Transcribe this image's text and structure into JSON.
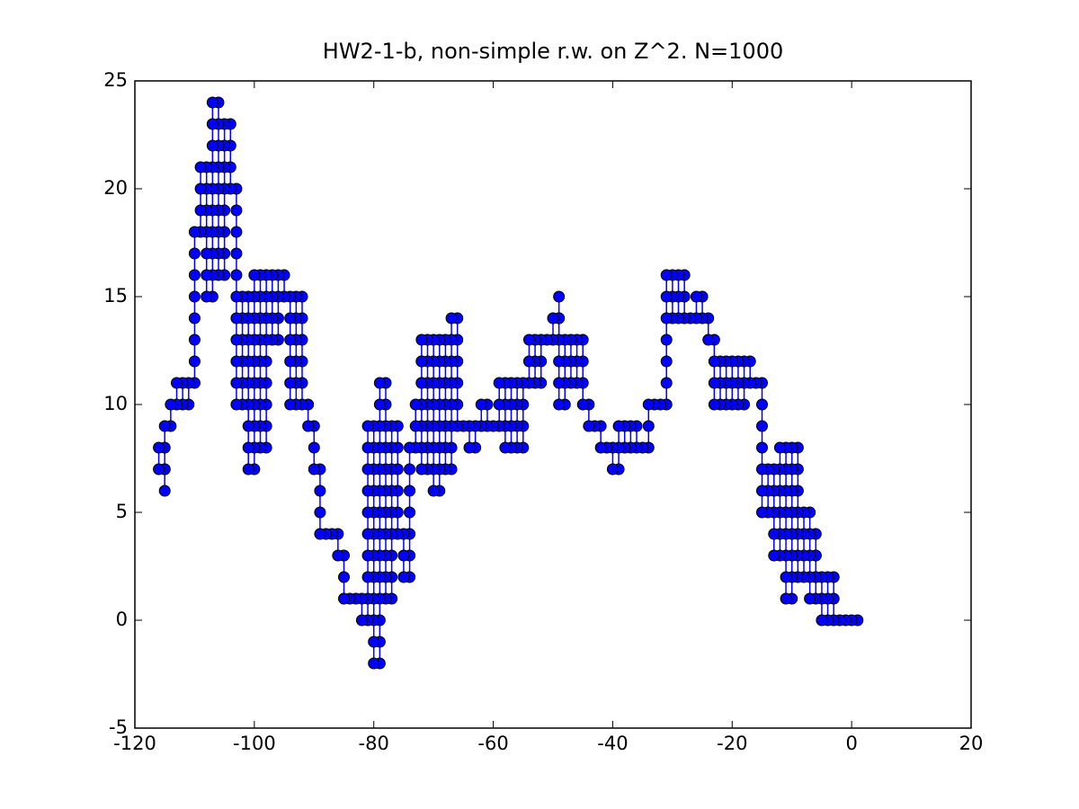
{
  "chart_data": {
    "type": "line",
    "title": "HW2-1-b, non-simple r.w. on Z^2. N=1000",
    "xlim": [
      -120,
      20
    ],
    "xticks": [
      -120,
      -100,
      -80,
      -60,
      -40,
      -20,
      0,
      20
    ],
    "ylim": [
      -5,
      25
    ],
    "yticks": [
      -5,
      0,
      5,
      10,
      15,
      20,
      25
    ],
    "marker_edge_color": "#000000",
    "x": [
      1,
      0,
      -1,
      -2,
      -3,
      -3,
      -3,
      -4,
      -4,
      -4,
      -5,
      -5,
      -5,
      -6,
      -6,
      -6,
      -6,
      -6,
      -6,
      -7,
      -7,
      -7,
      -7,
      -7,
      -8,
      -8,
      -8,
      -8,
      -9,
      -9,
      -9,
      -9,
      -9,
      -9,
      -9,
      -10,
      -10,
      -10,
      -10,
      -10,
      -10,
      -10,
      -10,
      -11,
      -11,
      -11,
      -11,
      -11,
      -11,
      -11,
      -11,
      -12,
      -12,
      -12,
      -12,
      -12,
      -12,
      -13,
      -13,
      -13,
      -13,
      -13,
      -14,
      -14,
      -14,
      -15,
      -15,
      -15,
      -15,
      -15,
      -15,
      -15,
      -16,
      -17,
      -17,
      -18,
      -18,
      -18,
      -19,
      -19,
      -19,
      -20,
      -20,
      -20,
      -21,
      -21,
      -21,
      -22,
      -22,
      -22,
      -23,
      -23,
      -23,
      -23,
      -24,
      -24,
      -25,
      -25,
      -26,
      -26,
      -27,
      -28,
      -28,
      -28,
      -29,
      -29,
      -29,
      -30,
      -30,
      -30,
      -31,
      -31,
      -31,
      -31,
      -31,
      -31,
      -31,
      -32,
      -33,
      -34,
      -34,
      -34,
      -35,
      -36,
      -36,
      -37,
      -37,
      -38,
      -38,
      -39,
      -39,
      -39,
      -40,
      -40,
      -41,
      -42,
      -42,
      -43,
      -44,
      -44,
      -45,
      -45,
      -45,
      -45,
      -46,
      -46,
      -46,
      -47,
      -47,
      -47,
      -48,
      -48,
      -48,
      -48,
      -49,
      -49,
      -49,
      -49,
      -49,
      -49,
      -49,
      -50,
      -50,
      -51,
      -52,
      -52,
      -52,
      -53,
      -53,
      -53,
      -54,
      -54,
      -54,
      -55,
      -55,
      -55,
      -55,
      -56,
      -56,
      -56,
      -56,
      -57,
      -57,
      -57,
      -57,
      -58,
      -58,
      -58,
      -58,
      -59,
      -59,
      -59,
      -60,
      -61,
      -61,
      -62,
      -62,
      -63,
      -63,
      -64,
      -64,
      -65,
      -66,
      -66,
      -66,
      -66,
      -66,
      -66,
      -67,
      -67,
      -67,
      -67,
      -67,
      -67,
      -67,
      -67,
      -68,
      -68,
      -68,
      -68,
      -68,
      -68,
      -68,
      -69,
      -69,
      -69,
      -69,
      -69,
      -69,
      -69,
      -69,
      -70,
      -70,
      -70,
      -70,
      -70,
      -70,
      -70,
      -70,
      -71,
      -71,
      -71,
      -71,
      -71,
      -71,
      -71,
      -72,
      -72,
      -72,
      -72,
      -72,
      -72,
      -72,
      -72,
      -72,
      -72,
      -73,
      -73,
      -73,
      -74,
      -74,
      -74,
      -74,
      -74,
      -74,
      -74,
      -75,
      -75,
      -75,
      -76,
      -76,
      -76,
      -76,
      -76,
      -76,
      -77,
      -77,
      -77,
      -77,
      -77,
      -77,
      -77,
      -77,
      -77,
      -78,
      -78,
      -78,
      -78,
      -78,
      -78,
      -78,
      -78,
      -78,
      -78,
      -78,
      -79,
      -79,
      -79,
      -79,
      -79,
      -79,
      -79,
      -79,
      -79,
      -79,
      -79,
      -79,
      -79,
      -79,
      -80,
      -80,
      -80,
      -80,
      -80,
      -80,
      -80,
      -80,
      -80,
      -80,
      -80,
      -80,
      -81,
      -81,
      -81,
      -81,
      -81,
      -81,
      -81,
      -81,
      -81,
      -81,
      -82,
      -82,
      -83,
      -84,
      -85,
      -85,
      -85,
      -86,
      -86,
      -87,
      -88,
      -89,
      -89,
      -89,
      -89,
      -90,
      -90,
      -90,
      -91,
      -91,
      -92,
      -92,
      -92,
      -92,
      -92,
      -92,
      -93,
      -93,
      -93,
      -93,
      -93,
      -93,
      -94,
      -94,
      -94,
      -94,
      -94,
      -94,
      -95,
      -95,
      -96,
      -96,
      -96,
      -96,
      -97,
      -97,
      -97,
      -97,
      -98,
      -98,
      -98,
      -98,
      -98,
      -98,
      -98,
      -98,
      -98,
      -99,
      -99,
      -99,
      -99,
      -99,
      -99,
      -99,
      -99,
      -99,
      -100,
      -100,
      -100,
      -100,
      -100,
      -100,
      -100,
      -100,
      -100,
      -100,
      -101,
      -101,
      -101,
      -101,
      -101,
      -101,
      -101,
      -101,
      -101,
      -102,
      -102,
      -102,
      -102,
      -102,
      -102,
      -103,
      -103,
      -103,
      -103,
      -103,
      -103,
      -103,
      -103,
      -103,
      -103,
      -103,
      -104,
      -104,
      -104,
      -104,
      -105,
      -105,
      -105,
      -105,
      -105,
      -105,
      -105,
      -105,
      -106,
      -106,
      -106,
      -106,
      -106,
      -106,
      -106,
      -106,
      -106,
      -107,
      -107,
      -107,
      -107,
      -107,
      -107,
      -107,
      -107,
      -107,
      -107,
      -108,
      -108,
      -108,
      -108,
      -108,
      -108,
      -108,
      -109,
      -109,
      -109,
      -109,
      -110,
      -110,
      -110,
      -110,
      -110,
      -110,
      -110,
      -110,
      -111,
      -111,
      -112,
      -112,
      -113,
      -113,
      -114,
      -114,
      -115,
      -115,
      -115,
      -115,
      -115,
      -116,
      -116
    ],
    "series": [
      {
        "color": "#0000ff",
        "values": [
          0,
          0,
          0,
          0,
          0,
          1,
          2,
          2,
          1,
          0,
          0,
          1,
          2,
          2,
          3,
          4,
          3,
          2,
          1,
          1,
          2,
          3,
          4,
          5,
          5,
          4,
          3,
          2,
          2,
          3,
          4,
          5,
          6,
          7,
          8,
          8,
          7,
          6,
          5,
          4,
          3,
          2,
          1,
          1,
          2,
          3,
          4,
          5,
          6,
          7,
          8,
          8,
          7,
          6,
          5,
          4,
          3,
          3,
          4,
          5,
          6,
          7,
          7,
          6,
          5,
          5,
          6,
          7,
          8,
          9,
          10,
          11,
          11,
          11,
          12,
          12,
          11,
          10,
          10,
          11,
          12,
          12,
          11,
          10,
          10,
          11,
          12,
          12,
          11,
          10,
          10,
          11,
          12,
          13,
          13,
          14,
          14,
          15,
          15,
          14,
          14,
          14,
          15,
          16,
          16,
          15,
          14,
          14,
          15,
          16,
          16,
          15,
          14,
          13,
          12,
          11,
          10,
          10,
          10,
          10,
          9,
          8,
          8,
          8,
          9,
          9,
          8,
          8,
          9,
          9,
          8,
          7,
          7,
          8,
          8,
          8,
          9,
          9,
          9,
          10,
          10,
          11,
          12,
          13,
          13,
          12,
          11,
          11,
          12,
          13,
          13,
          12,
          11,
          10,
          10,
          11,
          12,
          13,
          14,
          15,
          14,
          14,
          13,
          13,
          13,
          12,
          11,
          11,
          12,
          13,
          13,
          12,
          11,
          11,
          10,
          9,
          8,
          8,
          9,
          10,
          11,
          11,
          10,
          9,
          8,
          8,
          9,
          10,
          11,
          11,
          10,
          9,
          9,
          9,
          10,
          10,
          9,
          9,
          8,
          8,
          9,
          9,
          9,
          10,
          11,
          12,
          13,
          14,
          14,
          13,
          12,
          11,
          10,
          9,
          8,
          7,
          7,
          8,
          9,
          10,
          11,
          12,
          13,
          13,
          12,
          11,
          10,
          9,
          8,
          7,
          6,
          6,
          7,
          8,
          9,
          10,
          11,
          12,
          13,
          13,
          12,
          11,
          10,
          9,
          8,
          7,
          7,
          8,
          9,
          10,
          11,
          12,
          13,
          12,
          11,
          10,
          10,
          9,
          8,
          8,
          7,
          6,
          5,
          4,
          3,
          2,
          2,
          3,
          4,
          4,
          5,
          6,
          7,
          8,
          9,
          9,
          8,
          7,
          6,
          5,
          4,
          3,
          2,
          1,
          1,
          2,
          3,
          4,
          5,
          6,
          7,
          8,
          9,
          10,
          11,
          11,
          10,
          9,
          8,
          7,
          6,
          5,
          4,
          3,
          2,
          1,
          0,
          -1,
          -2,
          -2,
          -1,
          0,
          1,
          2,
          3,
          4,
          5,
          6,
          7,
          8,
          9,
          9,
          8,
          7,
          6,
          5,
          4,
          3,
          2,
          1,
          0,
          0,
          1,
          1,
          1,
          1,
          2,
          3,
          3,
          4,
          4,
          4,
          4,
          5,
          6,
          7,
          7,
          8,
          9,
          9,
          10,
          10,
          11,
          12,
          13,
          14,
          15,
          15,
          14,
          13,
          12,
          11,
          10,
          10,
          11,
          12,
          13,
          14,
          15,
          15,
          16,
          16,
          15,
          14,
          13,
          13,
          14,
          15,
          16,
          16,
          15,
          14,
          13,
          12,
          11,
          10,
          9,
          8,
          8,
          9,
          10,
          11,
          12,
          13,
          14,
          15,
          16,
          16,
          15,
          14,
          13,
          12,
          11,
          10,
          9,
          8,
          7,
          7,
          8,
          9,
          10,
          11,
          12,
          13,
          14,
          15,
          15,
          14,
          13,
          12,
          11,
          10,
          10,
          11,
          12,
          13,
          14,
          15,
          16,
          17,
          18,
          19,
          20,
          20,
          21,
          22,
          23,
          23,
          22,
          21,
          20,
          19,
          18,
          17,
          16,
          16,
          17,
          18,
          19,
          20,
          21,
          22,
          23,
          24,
          24,
          23,
          22,
          21,
          20,
          19,
          18,
          17,
          16,
          15,
          15,
          16,
          17,
          18,
          19,
          20,
          21,
          21,
          20,
          19,
          18,
          18,
          17,
          16,
          15,
          14,
          13,
          12,
          11,
          11,
          10,
          10,
          11,
          11,
          10,
          10,
          9,
          9,
          8,
          7,
          6,
          7,
          7,
          8
        ]
      }
    ]
  }
}
